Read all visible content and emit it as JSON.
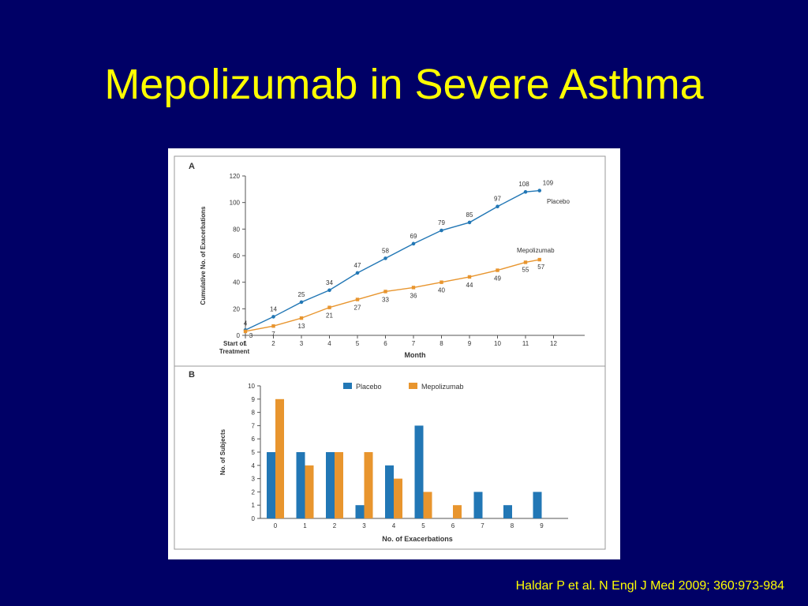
{
  "slide": {
    "title": "Mepolizumab in Severe Asthma",
    "citation": "Haldar P et al. N Engl J Med 2009; 360:973-984"
  },
  "colors": {
    "background": "#000066",
    "title": "#ffff00",
    "placebo": "#2277b5",
    "mepolizumab": "#e8952e"
  },
  "chart_data": [
    {
      "panel": "A",
      "type": "line",
      "xlabel": "Month",
      "ylabel": "Cumulative No. of Exacerbations",
      "x_first_label": [
        "Start of",
        "Treatment"
      ],
      "xticks": [
        1,
        2,
        3,
        4,
        5,
        6,
        7,
        8,
        9,
        10,
        11,
        12
      ],
      "yticks": [
        0,
        20,
        40,
        60,
        80,
        100,
        120
      ],
      "ylim": [
        0,
        120
      ],
      "series": [
        {
          "name": "Placebo",
          "color": "#2277b5",
          "x": [
            1,
            2,
            3,
            4,
            5,
            6,
            7,
            8,
            9,
            10,
            11,
            11.5
          ],
          "values": [
            4,
            14,
            25,
            34,
            47,
            58,
            69,
            79,
            85,
            97,
            108,
            109
          ]
        },
        {
          "name": "Mepolizumab",
          "color": "#e8952e",
          "x": [
            1,
            2,
            3,
            4,
            5,
            6,
            7,
            8,
            9,
            10,
            11,
            11.5
          ],
          "values": [
            3,
            7,
            13,
            21,
            27,
            33,
            36,
            40,
            44,
            49,
            55,
            57
          ]
        }
      ]
    },
    {
      "panel": "B",
      "type": "bar",
      "xlabel": "No. of Exacerbations",
      "ylabel": "No. of Subjects",
      "categories": [
        "0",
        "1",
        "2",
        "3",
        "4",
        "5",
        "6",
        "7",
        "8",
        "9"
      ],
      "yticks": [
        0,
        1,
        2,
        3,
        4,
        5,
        6,
        7,
        8,
        9,
        10
      ],
      "ylim": [
        0,
        10
      ],
      "legend": "top",
      "series": [
        {
          "name": "Placebo",
          "color": "#2277b5",
          "values": [
            5,
            5,
            5,
            1,
            4,
            7,
            0,
            2,
            1,
            2
          ]
        },
        {
          "name": "Mepolizumab",
          "color": "#e8952e",
          "values": [
            9,
            4,
            5,
            5,
            3,
            2,
            1,
            0,
            0,
            0
          ]
        }
      ]
    }
  ]
}
